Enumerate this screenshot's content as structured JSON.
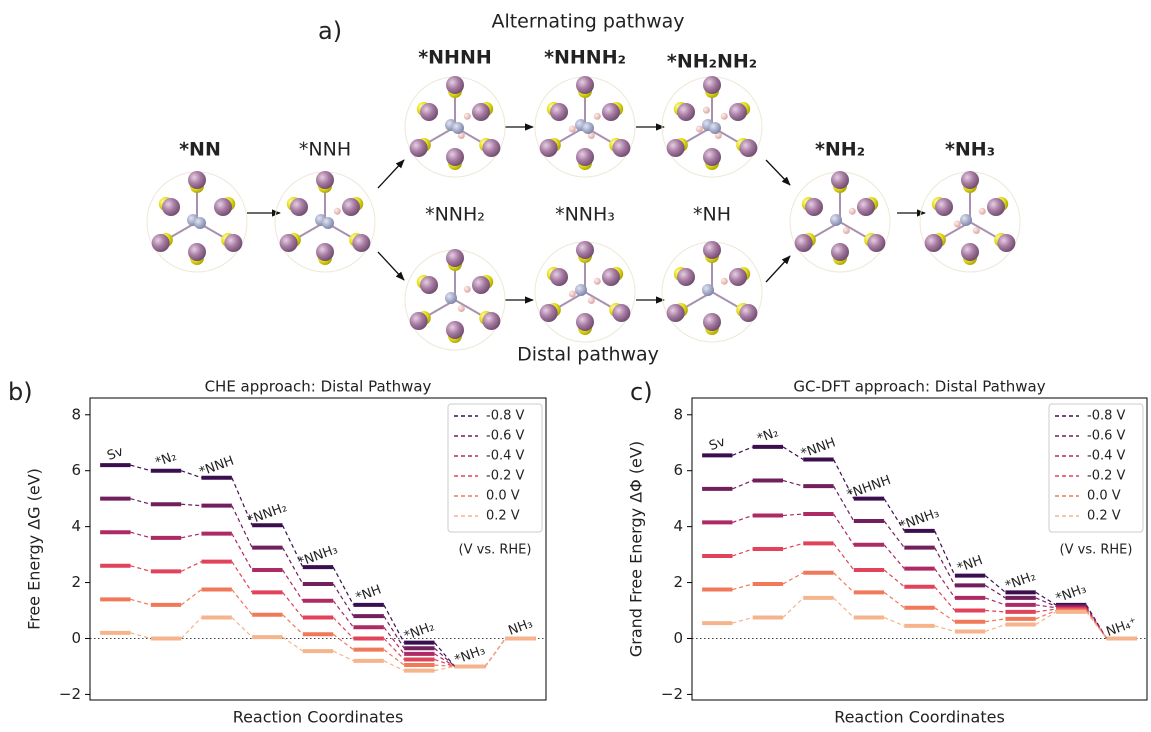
{
  "panel_a": {
    "label": "a)",
    "alternating_label": "Alternating pathway",
    "distal_label": "Distal pathway",
    "nodes": [
      {
        "label": "*NN"
      },
      {
        "label": "*NNH"
      },
      {
        "label": "*NHNH"
      },
      {
        "label": "*NHNH₂"
      },
      {
        "label": "*NH₂NH₂"
      },
      {
        "label": "*NNH₂"
      },
      {
        "label": "*NNH₃"
      },
      {
        "label": "*NH"
      },
      {
        "label": "*NH₂"
      },
      {
        "label": "*NH₃"
      }
    ]
  },
  "chart_data": [
    {
      "type": "energy-levels",
      "panel_label": "b)",
      "title": "CHE approach: Distal Pathway",
      "xlabel": "Reaction Coordinates",
      "ylabel": "Free Energy ΔG (eV)",
      "categories": [
        "Sv",
        "*N₂",
        "*NNH",
        "*NNH₂",
        "*NNH₃",
        "*NH",
        "*NH₂",
        "*NH₃",
        "NH₃"
      ],
      "ylim": [
        -2.2,
        8.6
      ],
      "yticks": [
        {
          "value": -2,
          "label": "−2"
        },
        0,
        2,
        4,
        6,
        8
      ],
      "legend": "upper right",
      "legend_note": "(V vs. RHE)",
      "series": [
        {
          "name": "-0.8 V",
          "color": "#3b0f4f",
          "values": [
            6.2,
            6.0,
            5.75,
            4.05,
            2.55,
            1.2,
            -0.15,
            -1.0,
            0
          ]
        },
        {
          "name": "-0.6 V",
          "color": "#721f5d",
          "values": [
            5.0,
            4.8,
            4.75,
            3.25,
            1.95,
            0.8,
            -0.35,
            -1.0,
            0
          ]
        },
        {
          "name": "-0.4 V",
          "color": "#ad2a64",
          "values": [
            3.8,
            3.6,
            3.75,
            2.45,
            1.35,
            0.4,
            -0.55,
            -1.0,
            0
          ]
        },
        {
          "name": "-0.2 V",
          "color": "#e0435a",
          "values": [
            2.6,
            2.4,
            2.75,
            1.65,
            0.75,
            0.0,
            -0.75,
            -1.0,
            0
          ]
        },
        {
          "name": "0.0 V",
          "color": "#f0795a",
          "values": [
            1.4,
            1.2,
            1.75,
            0.85,
            0.15,
            -0.4,
            -0.95,
            -1.0,
            0
          ]
        },
        {
          "name": "0.2 V",
          "color": "#f5b48c",
          "values": [
            0.2,
            0.0,
            0.75,
            0.05,
            -0.45,
            -0.8,
            -1.15,
            -1.0,
            0
          ]
        }
      ]
    },
    {
      "type": "energy-levels",
      "panel_label": "c)",
      "title": "GC-DFT approach: Distal Pathway",
      "xlabel": "Reaction Coordinates",
      "ylabel": "Grand Free Energy ΔΦ (eV)",
      "categories": [
        "Sv",
        "*N₂",
        "*NNH",
        "*NHNH",
        "*NNH₃",
        "*NH",
        "*NH₂",
        "*NH₃",
        "NH₄⁺"
      ],
      "ylim": [
        -2.2,
        8.6
      ],
      "yticks": [
        {
          "value": -2,
          "label": "−2"
        },
        0,
        2,
        4,
        6,
        8
      ],
      "legend": "upper right",
      "legend_note": "(V vs. RHE)",
      "series": [
        {
          "name": "-0.8 V",
          "color": "#3b0f4f",
          "values": [
            6.55,
            6.85,
            6.4,
            5.0,
            3.85,
            2.25,
            1.65,
            1.2,
            0
          ]
        },
        {
          "name": "-0.6 V",
          "color": "#721f5d",
          "values": [
            5.35,
            5.65,
            5.45,
            4.2,
            3.25,
            1.9,
            1.45,
            1.15,
            0
          ]
        },
        {
          "name": "-0.4 V",
          "color": "#ad2a64",
          "values": [
            4.15,
            4.4,
            4.45,
            3.35,
            2.5,
            1.45,
            1.2,
            1.1,
            0
          ]
        },
        {
          "name": "-0.2 V",
          "color": "#e0435a",
          "values": [
            2.95,
            3.2,
            3.4,
            2.45,
            1.85,
            1.0,
            0.95,
            1.05,
            0
          ]
        },
        {
          "name": "0.0 V",
          "color": "#f0795a",
          "values": [
            1.75,
            1.95,
            2.35,
            1.65,
            1.1,
            0.6,
            0.7,
            1.0,
            0
          ]
        },
        {
          "name": "0.2 V",
          "color": "#f5b48c",
          "values": [
            0.55,
            0.75,
            1.45,
            0.75,
            0.45,
            0.25,
            0.5,
            0.95,
            0
          ]
        }
      ]
    }
  ]
}
